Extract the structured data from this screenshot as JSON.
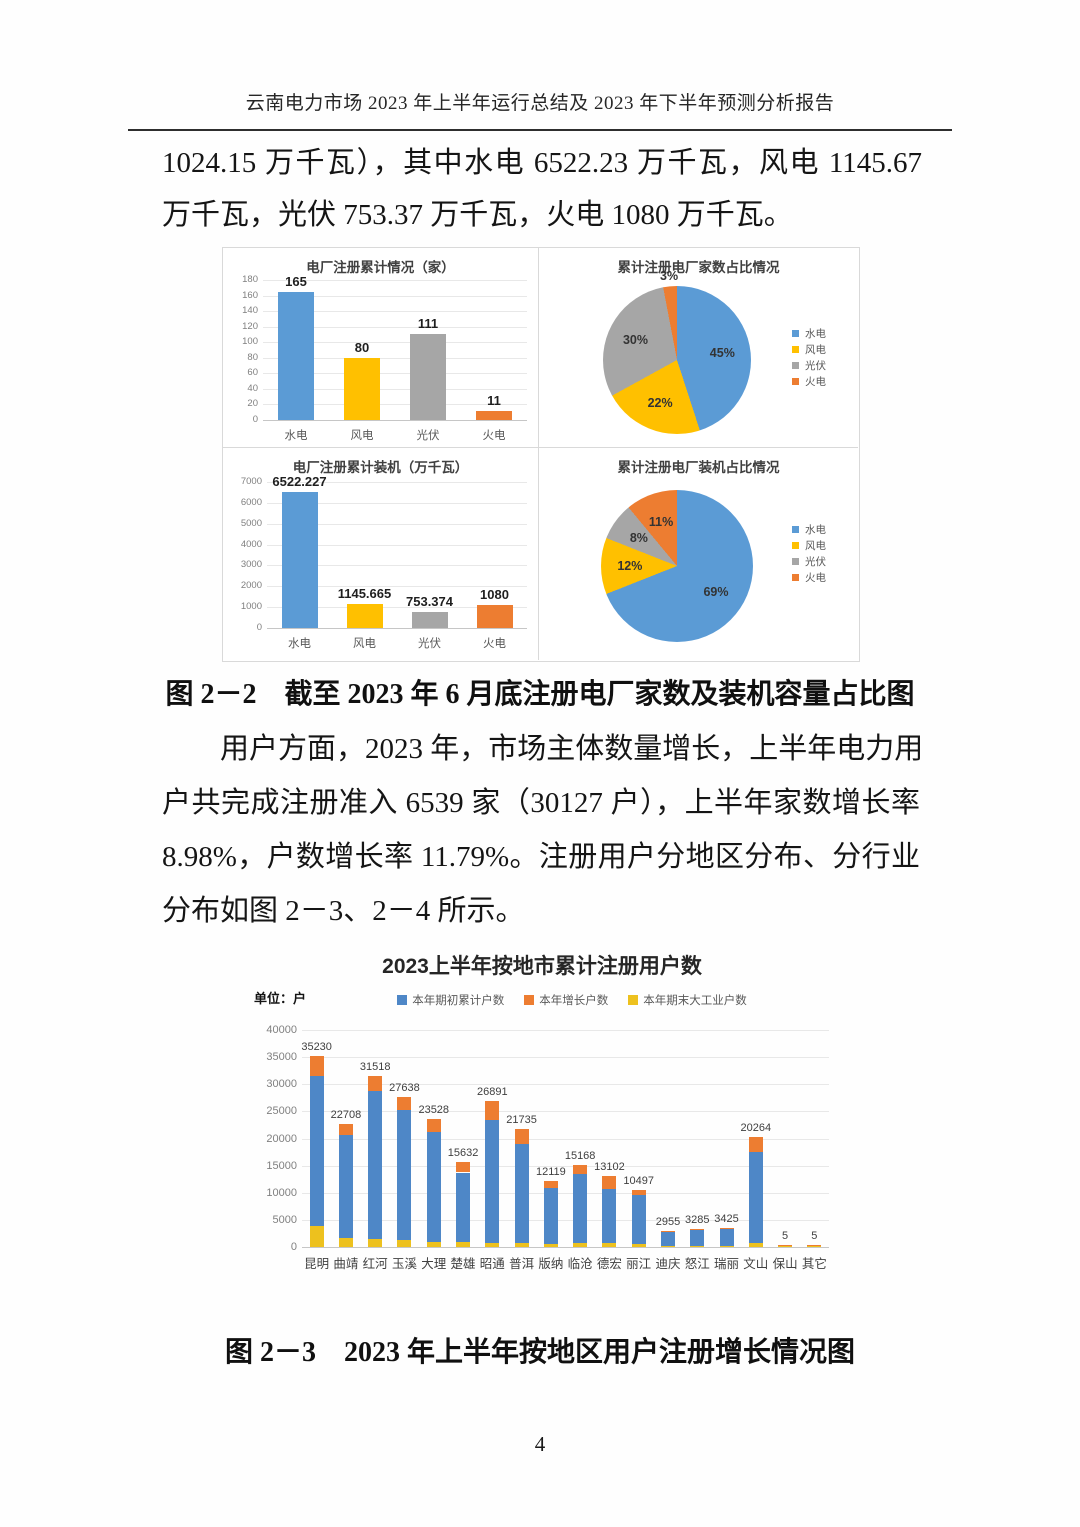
{
  "header": {
    "title": "云南电力市场 2023 年上半年运行总结及 2023 年下半年预测分析报告"
  },
  "paragraphs": {
    "p1_lines": [
      "1024.15 万千瓦），其中水电 6522.23 万千瓦，风电 1145.67",
      "万千瓦，光伏 753.37 万千瓦，火电 1080 万千瓦。"
    ],
    "p2_lines": [
      "用户方面，2023 年，市场主体数量增长，上半年电力用",
      "户共完成注册准入 6539 家（30127 户），上半年家数增长率",
      "8.98%，户数增长率 11.79%。注册用户分地区分布、分行业",
      "分布如图 2－3、2－4 所示。"
    ]
  },
  "captions": {
    "fig22": "图 2－2　截至 2023 年 6 月底注册电厂家数及装机容量占比图",
    "fig23": "图 2－3　2023 年上半年按地区用户注册增长情况图"
  },
  "page": {
    "number": "4"
  },
  "colors": {
    "hydro_blue": "#5B9BD5",
    "wind_yellow": "#FFC000",
    "solar_gray": "#A6A6A6",
    "thermal_orange": "#ED7D31",
    "stacked_initial_blue": "#4E87C7",
    "stacked_growth_orange": "#ED7D31",
    "stacked_industry_yellow": "#EDC11E"
  },
  "chart_data": [
    {
      "id": "plant-count-bar",
      "type": "bar",
      "title": "电厂注册累计情况（家）",
      "categories": [
        "水电",
        "风电",
        "光伏",
        "火电"
      ],
      "keys": [
        "hydro",
        "wind",
        "solar",
        "thermal"
      ],
      "values": [
        165,
        80,
        111,
        11
      ],
      "value_labels": [
        "165",
        "80",
        "111",
        "11"
      ],
      "colors": [
        "#5B9BD5",
        "#FFC000",
        "#A6A6A6",
        "#ED7D31"
      ],
      "ylim": [
        0,
        180
      ],
      "ytick_step": 20,
      "grid": true
    },
    {
      "id": "plant-count-pie",
      "type": "pie",
      "title": "累计注册电厂家数占比情况",
      "labels": [
        "水电",
        "风电",
        "光伏",
        "火电"
      ],
      "keys": [
        "hydro",
        "wind",
        "solar",
        "thermal"
      ],
      "values_pct": [
        45,
        22,
        30,
        3
      ],
      "value_labels": [
        "45%",
        "22%",
        "30%",
        "3%"
      ],
      "colors": [
        "#5B9BD5",
        "#FFC000",
        "#A6A6A6",
        "#ED7D31"
      ],
      "legend_position": "right"
    },
    {
      "id": "capacity-bar",
      "type": "bar",
      "title": "电厂注册累计装机（万千瓦）",
      "categories": [
        "水电",
        "风电",
        "光伏",
        "火电"
      ],
      "keys": [
        "hydro",
        "wind",
        "solar",
        "thermal"
      ],
      "values": [
        6522.227,
        1145.665,
        753.374,
        1080
      ],
      "value_labels": [
        "6522.227",
        "1145.665",
        "753.374",
        "1080"
      ],
      "colors": [
        "#5B9BD5",
        "#FFC000",
        "#A6A6A6",
        "#ED7D31"
      ],
      "ylim": [
        0,
        7000
      ],
      "ytick_step": 1000,
      "grid": true
    },
    {
      "id": "capacity-pie",
      "type": "pie",
      "title": "累计注册电厂装机占比情况",
      "labels": [
        "水电",
        "风电",
        "光伏",
        "火电"
      ],
      "keys": [
        "hydro",
        "wind",
        "solar",
        "thermal"
      ],
      "values_pct": [
        69,
        12,
        8,
        11
      ],
      "value_labels": [
        "69%",
        "12%",
        "8%",
        "11%"
      ],
      "colors": [
        "#5B9BD5",
        "#FFC000",
        "#A6A6A6",
        "#ED7D31"
      ],
      "legend_position": "right"
    },
    {
      "id": "users-by-city",
      "type": "stacked-bar",
      "title": "2023上半年按地市累计注册用户数",
      "unit_label": "单位：户",
      "categories": [
        "昆明",
        "曲靖",
        "红河",
        "玉溪",
        "大理",
        "楚雄",
        "昭通",
        "普洱",
        "版纳",
        "临沧",
        "德宏",
        "丽江",
        "迪庆",
        "怒江",
        "瑞丽",
        "文山",
        "保山",
        "其它"
      ],
      "totals": [
        35230,
        22708,
        31518,
        27638,
        23528,
        15632,
        26891,
        21735,
        12119,
        15168,
        13102,
        10497,
        2955,
        3285,
        3425,
        20264,
        5,
        5
      ],
      "total_labels": [
        "35230",
        "22708",
        "31518",
        "27638",
        "23528",
        "15632",
        "26891",
        "21735",
        "12119",
        "15168",
        "13102",
        "10497",
        "2955",
        "3285",
        "3425",
        "20264",
        "5",
        "5"
      ],
      "series": [
        {
          "key": "initial",
          "name": "本年期初累计户数",
          "color": "#4E87C7",
          "values_est": [
            27730,
            19008,
            27318,
            24038,
            20228,
            12832,
            22691,
            18235,
            10319,
            12668,
            10002,
            9097,
            2655,
            2985,
            3175,
            16714,
            0,
            0
          ]
        },
        {
          "key": "growth",
          "name": "本年增长户数",
          "color": "#ED7D31",
          "values_est": [
            3700,
            2000,
            2800,
            2300,
            2300,
            1900,
            3400,
            2800,
            1300,
            1700,
            2400,
            900,
            200,
            200,
            100,
            2750,
            3,
            3
          ]
        },
        {
          "key": "industry",
          "name": "本年期末大工业户数",
          "color": "#EDC11E",
          "values_est": [
            3800,
            1700,
            1400,
            1300,
            1000,
            900,
            800,
            700,
            500,
            800,
            700,
            500,
            100,
            100,
            150,
            800,
            2,
            2
          ]
        }
      ],
      "stack_order_bottom_to_top": [
        "industry",
        "initial",
        "growth"
      ],
      "ylim": [
        0,
        40000
      ],
      "ytick_step": 5000,
      "grid": true,
      "legend_position": "top",
      "note": "series splits estimated from pixels; totals are the printed data labels"
    }
  ]
}
